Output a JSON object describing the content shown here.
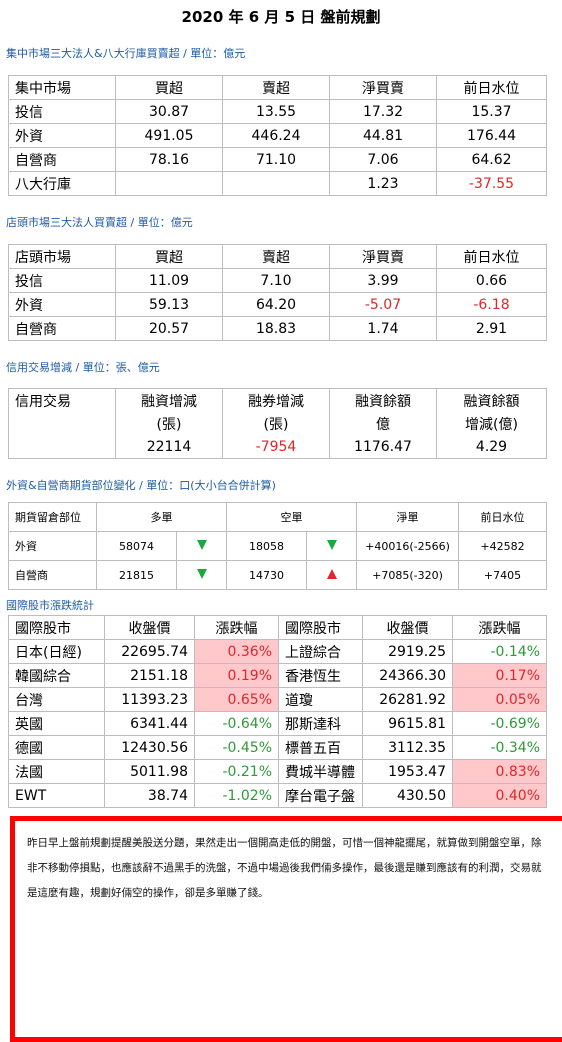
{
  "title": "2020 年 6 月 5 日  盤前規劃",
  "sec1": {
    "heading": "集中市場三大法人&八大行庫買賣超 / 單位：億元",
    "header": [
      "集中市場",
      "買超",
      "賣超",
      "淨買賣",
      "前日水位"
    ],
    "rows": [
      [
        "投信",
        "30.87",
        "13.55",
        "17.32",
        "15.37"
      ],
      [
        "外資",
        "491.05",
        "446.24",
        "44.81",
        "176.44"
      ],
      [
        "自營商",
        "78.16",
        "71.10",
        "7.06",
        "64.62"
      ],
      [
        "八大行庫",
        "",
        "",
        "1.23",
        "-37.55"
      ]
    ]
  },
  "sec2": {
    "heading": "店頭市場三大法人買賣超 / 單位：億元",
    "header": [
      "店頭市場",
      "買超",
      "賣超",
      "淨買賣",
      "前日水位"
    ],
    "rows": [
      [
        "投信",
        "11.09",
        "7.10",
        "3.99",
        "0.66"
      ],
      [
        "外資",
        "59.13",
        "64.20",
        "-5.07",
        "-6.18"
      ],
      [
        "自營商",
        "20.57",
        "18.83",
        "1.74",
        "2.91"
      ]
    ]
  },
  "sec3": {
    "heading": "信用交易增減 / 單位：張、億元",
    "header": [
      "信用交易",
      "融資增減",
      "融券增減",
      "融資餘額",
      "融資餘額"
    ],
    "units": [
      "",
      "(張)",
      "(張)",
      "億",
      "增減(億)"
    ],
    "values": [
      "",
      "22114",
      "-7954",
      "1176.47",
      "4.29"
    ]
  },
  "sec4": {
    "heading": "外資&自營商期貨部位變化 / 單位：口(大小台合併計算)",
    "header": [
      "期貨留倉部位",
      "多單",
      "空單",
      "淨單",
      "前日水位"
    ],
    "rows": [
      {
        "name": "外資",
        "long": "58074",
        "long_dir": "down",
        "short": "18058",
        "short_dir": "down",
        "net": "+40016(-2566)",
        "prev": "+42582"
      },
      {
        "name": "自營商",
        "long": "21815",
        "long_dir": "down",
        "short": "14730",
        "short_dir": "up",
        "net": "+7085(-320)",
        "prev": "+7405"
      }
    ]
  },
  "sec5": {
    "heading": "國際股市漲跌統計",
    "header": [
      "國際股市",
      "收盤價",
      "漲跌幅",
      "國際股市",
      "收盤價",
      "漲跌幅"
    ],
    "rows": [
      [
        "日本(日經)",
        "22695.74",
        "0.36%",
        "上證綜合",
        "2919.25",
        "-0.14%"
      ],
      [
        "韓國綜合",
        "2151.18",
        "0.19%",
        "香港恆生",
        "24366.30",
        "0.17%"
      ],
      [
        "台灣",
        "11393.23",
        "0.65%",
        "道瓊",
        "26281.92",
        "0.05%"
      ],
      [
        "英國",
        "6341.44",
        "-0.64%",
        "那斯達科",
        "9615.81",
        "-0.69%"
      ],
      [
        "德國",
        "12430.56",
        "-0.45%",
        "標普五百",
        "3112.35",
        "-0.34%"
      ],
      [
        "法國",
        "5011.98",
        "-0.21%",
        "費城半導體",
        "1953.47",
        "0.83%"
      ],
      [
        "EWT",
        "38.74",
        "-1.02%",
        "摩台電子盤",
        "430.50",
        "0.40%"
      ]
    ]
  },
  "note": "昨日早上盤前規劃提醒美股送分題，果然走出一個開高走低的開盤，可惜一個神龍擺尾，就算做到開盤空單，除非不移動停損點，也應該辭不過黑手的洗盤，不過中場過後我們倆多操作，最後還是賺到應該有的利潤，交易就是這麼有趣，規劃好倆空的操作，卻是多單賺了錢。",
  "colors": {
    "heading": "#1f5ba6",
    "up": "#e0262a",
    "down": "#2e9a39",
    "highlight": "#ffc9cc",
    "note_border": "#ff0000"
  }
}
